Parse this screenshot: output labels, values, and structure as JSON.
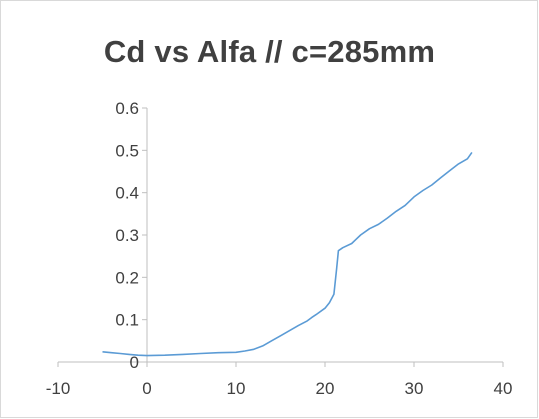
{
  "chart_data": {
    "type": "line",
    "title": "Cd vs Alfa // c=285mm",
    "xlabel": "",
    "ylabel": "",
    "xlim": [
      -10,
      40
    ],
    "ylim": [
      0,
      0.6
    ],
    "x_ticks": [
      -10,
      0,
      10,
      20,
      30,
      40
    ],
    "y_ticks": [
      0,
      0.1,
      0.2,
      0.3,
      0.4,
      0.5,
      0.6
    ],
    "x_tick_labels": [
      "-10",
      "0",
      "10",
      "20",
      "30",
      "40"
    ],
    "y_tick_labels": [
      "0",
      "0.1",
      "0.2",
      "0.3",
      "0.4",
      "0.5",
      "0.6"
    ],
    "grid": false,
    "legend": "none",
    "line_color": "#5b9bd5",
    "series": [
      {
        "x": [
          -5,
          -4,
          -3,
          -2,
          -1,
          0,
          2,
          4,
          6,
          8,
          10,
          11,
          12,
          13,
          14,
          15,
          16,
          17,
          18,
          18.5,
          19,
          20,
          20.5,
          21,
          21.3,
          21.5,
          22,
          23,
          23.5,
          24,
          25,
          26,
          27,
          28,
          29,
          30,
          31,
          32,
          33,
          34,
          35,
          36,
          36.5
        ],
        "y": [
          0.024,
          0.022,
          0.02,
          0.018,
          0.016,
          0.015,
          0.016,
          0.018,
          0.02,
          0.022,
          0.023,
          0.026,
          0.03,
          0.038,
          0.05,
          0.062,
          0.074,
          0.086,
          0.097,
          0.105,
          0.112,
          0.127,
          0.14,
          0.16,
          0.22,
          0.263,
          0.27,
          0.28,
          0.29,
          0.3,
          0.315,
          0.325,
          0.34,
          0.356,
          0.37,
          0.39,
          0.405,
          0.418,
          0.435,
          0.452,
          0.468,
          0.48,
          0.495
        ]
      }
    ]
  }
}
